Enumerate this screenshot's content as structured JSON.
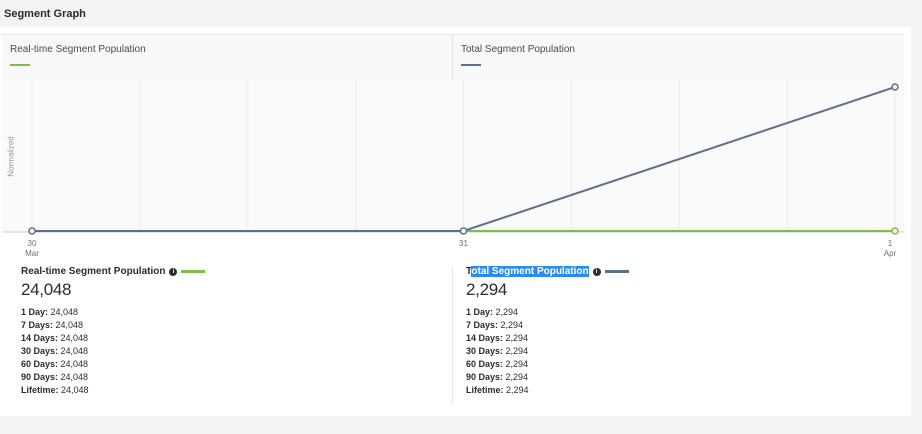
{
  "page": {
    "title": "Segment Graph"
  },
  "legend": [
    {
      "label": "Real-time Segment Population",
      "color": "#7bbf46"
    },
    {
      "label": "Total Segment Population",
      "color": "#5c6f91"
    }
  ],
  "chart_data": {
    "type": "line",
    "ylabel": "Normalized",
    "x": [
      "30 Mar",
      "31",
      "1 Apr"
    ],
    "x_tick_lines": [
      [
        "30",
        "Mar"
      ],
      [
        "31",
        ""
      ],
      [
        "1",
        "Apr"
      ]
    ],
    "series": [
      {
        "name": "Real-time Segment Population",
        "color": "#7bbf46",
        "values": [
          0,
          0,
          0
        ]
      },
      {
        "name": "Total Segment Population",
        "color": "#5c6f91",
        "values": [
          0,
          0,
          1
        ]
      }
    ],
    "ylim": [
      0,
      1
    ],
    "grid": "vertical",
    "legend_position": "top"
  },
  "stats": [
    {
      "name": "Real-time Segment Population",
      "name_head": "",
      "name_selected": "Real-time Segment Population",
      "selected": false,
      "color": "#7bbf46",
      "total": "24,048",
      "rows": [
        {
          "label": "1 Day:",
          "value": "24,048"
        },
        {
          "label": "7 Days:",
          "value": "24,048"
        },
        {
          "label": "14 Days:",
          "value": "24,048"
        },
        {
          "label": "30 Days:",
          "value": "24,048"
        },
        {
          "label": "60 Days:",
          "value": "24,048"
        },
        {
          "label": "90 Days:",
          "value": "24,048"
        },
        {
          "label": "Lifetime:",
          "value": "24,048"
        }
      ]
    },
    {
      "name": "Total Segment Population",
      "name_head": "T",
      "name_selected": "otal Segment Population",
      "selected": true,
      "color": "#5c6f91",
      "total": "2,294",
      "rows": [
        {
          "label": "1 Day:",
          "value": "2,294"
        },
        {
          "label": "7 Days:",
          "value": "2,294"
        },
        {
          "label": "14 Days:",
          "value": "2,294"
        },
        {
          "label": "30 Days:",
          "value": "2,294"
        },
        {
          "label": "60 Days:",
          "value": "2,294"
        },
        {
          "label": "90 Days:",
          "value": "2,294"
        },
        {
          "label": "Lifetime:",
          "value": "2,294"
        }
      ]
    }
  ],
  "icons": {
    "info": "info-icon"
  }
}
